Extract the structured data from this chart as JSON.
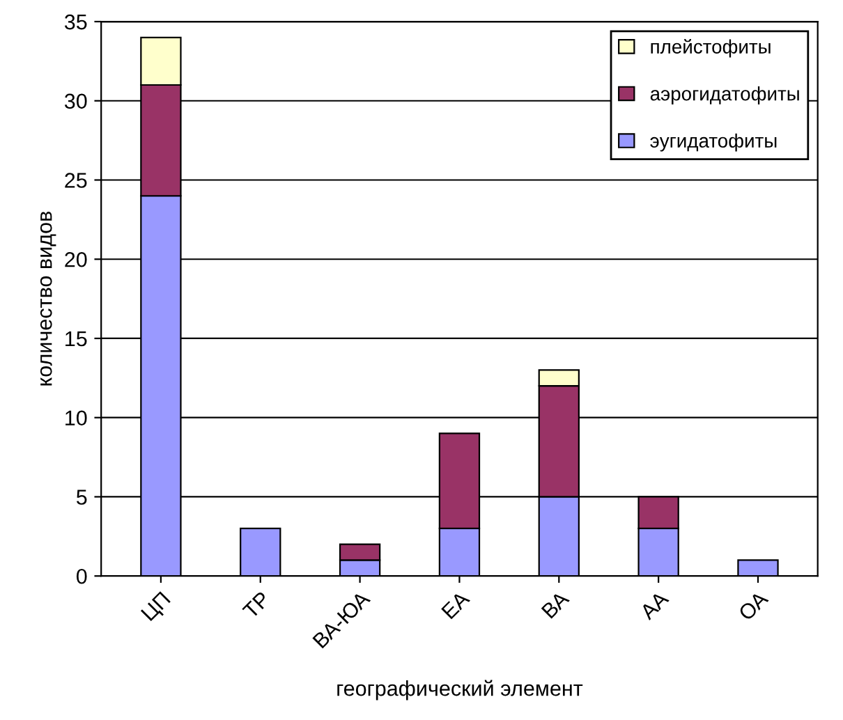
{
  "chart_data": {
    "type": "bar",
    "stacked": true,
    "xlabel": "географический элемент",
    "ylabel": "количество видов",
    "categories": [
      "ЦП",
      "ТР",
      "ВА-ЮА",
      "ЕА",
      "ВА",
      "АА",
      "ОА"
    ],
    "series": [
      {
        "name": "эугидатофиты",
        "color": "#9999ff",
        "values": [
          24,
          3,
          1,
          3,
          5,
          3,
          1
        ]
      },
      {
        "name": "аэрогидатофиты",
        "color": "#993366",
        "values": [
          7,
          0,
          1,
          6,
          7,
          2,
          0
        ]
      },
      {
        "name": "плейстофиты",
        "color": "#ffffcc",
        "values": [
          3,
          0,
          0,
          0,
          1,
          0,
          0
        ]
      }
    ],
    "ylim": [
      0,
      35
    ],
    "yticks": [
      0,
      5,
      10,
      15,
      20,
      25,
      30,
      35
    ],
    "grid": "y",
    "legend": "top right"
  }
}
